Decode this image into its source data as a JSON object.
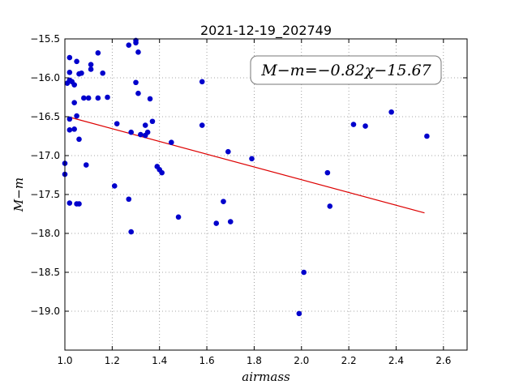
{
  "chart_data": {
    "type": "scatter",
    "title": "2021-12-19_202749",
    "xlabel": "airmass",
    "ylabel": "M−m",
    "xlim": [
      1.0,
      2.7
    ],
    "ylim": [
      -15.5,
      -19.5
    ],
    "y_inverted": true,
    "grid": true,
    "x_ticks": [
      "1.0",
      "1.2",
      "1.4",
      "1.6",
      "1.8",
      "2.0",
      "2.2",
      "2.4",
      "2.6"
    ],
    "y_ticks": [
      "−15.5",
      "−16.0",
      "−16.5",
      "−17.0",
      "−17.5",
      "−18.0",
      "−18.5",
      "−19.0"
    ],
    "annotation": "M−m=−0.82χ−15.67",
    "point_color": "#0000cc",
    "fit_color": "#dd0000",
    "fit_line": {
      "slope": -0.82,
      "intercept": -15.67,
      "x": [
        1.02,
        2.52
      ]
    },
    "points": [
      {
        "x": 1.0,
        "y": -17.1
      },
      {
        "x": 1.0,
        "y": -17.24
      },
      {
        "x": 1.01,
        "y": -16.07
      },
      {
        "x": 1.02,
        "y": -16.03
      },
      {
        "x": 1.02,
        "y": -15.93
      },
      {
        "x": 1.02,
        "y": -15.74
      },
      {
        "x": 1.02,
        "y": -16.53
      },
      {
        "x": 1.02,
        "y": -16.67
      },
      {
        "x": 1.02,
        "y": -17.61
      },
      {
        "x": 1.03,
        "y": -16.05
      },
      {
        "x": 1.04,
        "y": -16.32
      },
      {
        "x": 1.04,
        "y": -16.09
      },
      {
        "x": 1.04,
        "y": -16.66
      },
      {
        "x": 1.05,
        "y": -16.49
      },
      {
        "x": 1.05,
        "y": -17.62
      },
      {
        "x": 1.05,
        "y": -15.79
      },
      {
        "x": 1.06,
        "y": -17.62
      },
      {
        "x": 1.06,
        "y": -16.79
      },
      {
        "x": 1.06,
        "y": -15.95
      },
      {
        "x": 1.07,
        "y": -15.94
      },
      {
        "x": 1.08,
        "y": -16.26
      },
      {
        "x": 1.09,
        "y": -17.12
      },
      {
        "x": 1.1,
        "y": -16.26
      },
      {
        "x": 1.11,
        "y": -15.83
      },
      {
        "x": 1.11,
        "y": -15.89
      },
      {
        "x": 1.14,
        "y": -16.26
      },
      {
        "x": 1.14,
        "y": -15.68
      },
      {
        "x": 1.16,
        "y": -15.94
      },
      {
        "x": 1.18,
        "y": -16.25
      },
      {
        "x": 1.21,
        "y": -17.39
      },
      {
        "x": 1.22,
        "y": -16.59
      },
      {
        "x": 1.27,
        "y": -15.58
      },
      {
        "x": 1.27,
        "y": -17.56
      },
      {
        "x": 1.28,
        "y": -17.98
      },
      {
        "x": 1.28,
        "y": -16.7
      },
      {
        "x": 1.3,
        "y": -16.06
      },
      {
        "x": 1.3,
        "y": -15.52
      },
      {
        "x": 1.3,
        "y": -15.55
      },
      {
        "x": 1.31,
        "y": -15.67
      },
      {
        "x": 1.31,
        "y": -16.2
      },
      {
        "x": 1.32,
        "y": -16.73
      },
      {
        "x": 1.34,
        "y": -16.61
      },
      {
        "x": 1.34,
        "y": -16.74
      },
      {
        "x": 1.35,
        "y": -16.7
      },
      {
        "x": 1.36,
        "y": -16.27
      },
      {
        "x": 1.37,
        "y": -16.56
      },
      {
        "x": 1.39,
        "y": -17.14
      },
      {
        "x": 1.4,
        "y": -17.18
      },
      {
        "x": 1.41,
        "y": -17.22
      },
      {
        "x": 1.45,
        "y": -16.83
      },
      {
        "x": 1.48,
        "y": -17.79
      },
      {
        "x": 1.58,
        "y": -16.05
      },
      {
        "x": 1.58,
        "y": -16.61
      },
      {
        "x": 1.64,
        "y": -17.87
      },
      {
        "x": 1.67,
        "y": -17.59
      },
      {
        "x": 1.69,
        "y": -16.95
      },
      {
        "x": 1.7,
        "y": -17.85
      },
      {
        "x": 1.79,
        "y": -17.04
      },
      {
        "x": 1.99,
        "y": -19.03
      },
      {
        "x": 2.01,
        "y": -18.5
      },
      {
        "x": 2.11,
        "y": -17.22
      },
      {
        "x": 2.12,
        "y": -17.65
      },
      {
        "x": 2.22,
        "y": -16.6
      },
      {
        "x": 2.27,
        "y": -16.62
      },
      {
        "x": 2.38,
        "y": -16.44
      },
      {
        "x": 2.53,
        "y": -16.75
      }
    ]
  }
}
